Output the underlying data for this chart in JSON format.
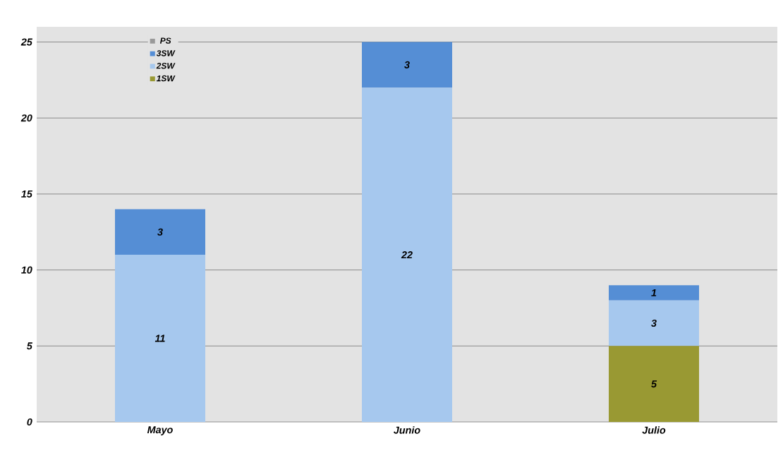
{
  "chart_data": {
    "type": "bar",
    "stacked": true,
    "categories": [
      "Mayo",
      "Junio",
      "Julio"
    ],
    "series": [
      {
        "name": "1SW",
        "color": "#999933",
        "values": [
          null,
          null,
          5
        ]
      },
      {
        "name": "2SW",
        "color": "#a6c8ee",
        "values": [
          11,
          22,
          3
        ]
      },
      {
        "name": "3SW",
        "color": "#558ed5",
        "values": [
          3,
          3,
          1
        ]
      },
      {
        "name": "PS",
        "color": "#999999",
        "values": [
          null,
          null,
          null
        ]
      }
    ],
    "ylim": [
      0,
      26
    ],
    "yticks": [
      0,
      5,
      10,
      15,
      20,
      25
    ],
    "grid": "y",
    "legend": "top left",
    "data_labels": true
  }
}
